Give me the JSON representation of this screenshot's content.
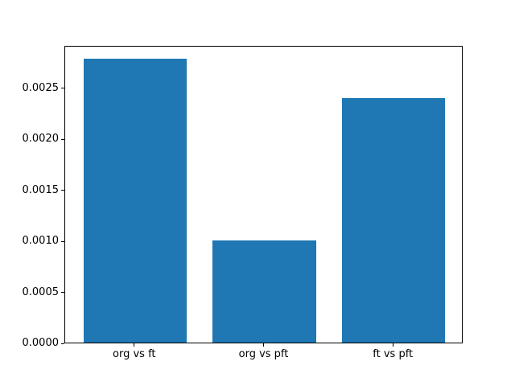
{
  "chart_data": {
    "type": "bar",
    "categories": [
      "org vs ft",
      "org vs pft",
      "ft vs pft"
    ],
    "values": [
      0.00278,
      0.001,
      0.0024
    ],
    "title": "",
    "xlabel": "",
    "ylabel": "",
    "ylim": [
      0,
      0.002917
    ],
    "xlim": [
      -0.54,
      2.54
    ],
    "ytick_values": [
      0.0,
      0.0005,
      0.001,
      0.0015,
      0.002,
      0.0025
    ],
    "ytick_labels": [
      "0.0000",
      "0.0005",
      "0.0010",
      "0.0015",
      "0.0020",
      "0.0025"
    ],
    "bar_width": 0.8,
    "bar_color": "#1f77b4",
    "grid": false,
    "legend_position": "none"
  },
  "colors": {
    "background": "#ffffff",
    "spine": "#000000",
    "text": "#000000",
    "bar": "#1f77b4"
  }
}
